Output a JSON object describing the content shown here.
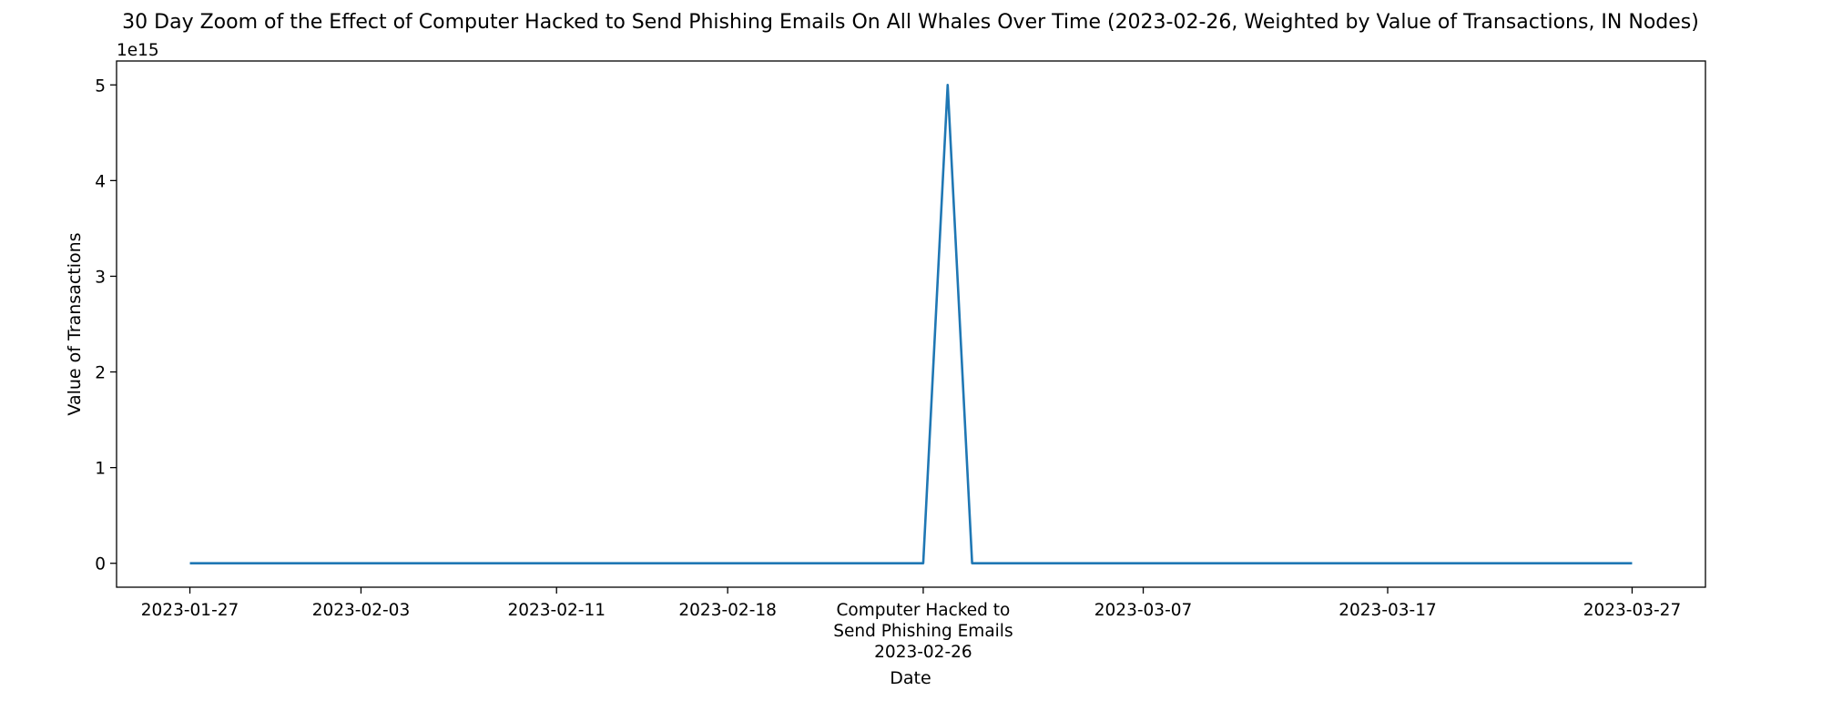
{
  "chart_data": {
    "type": "line",
    "title": "30 Day Zoom of the Effect of Computer Hacked to Send Phishing Emails On All Whales Over Time (2023-02-26, Weighted by Value of Transactions, IN Nodes)",
    "xlabel": "Date",
    "ylabel": "Value of Transactions",
    "y_offset_label": "1e15",
    "xlim": [
      "2023-01-24",
      "2023-03-30"
    ],
    "ylim": [
      -0.25,
      5.25
    ],
    "y_multiplier": 1000000000000000.0,
    "yticks": [
      0,
      1,
      2,
      3,
      4,
      5
    ],
    "xticks": [
      {
        "date": "2023-01-27",
        "label": "2023-01-27"
      },
      {
        "date": "2023-02-03",
        "label": "2023-02-03"
      },
      {
        "date": "2023-02-11",
        "label": "2023-02-11"
      },
      {
        "date": "2023-02-18",
        "label": "2023-02-18"
      },
      {
        "date": "2023-02-26",
        "label": "2023-02-26"
      },
      {
        "date": "2023-03-07",
        "label": "2023-03-07"
      },
      {
        "date": "2023-03-17",
        "label": "2023-03-17"
      },
      {
        "date": "2023-03-27",
        "label": "2023-03-27"
      }
    ],
    "event": {
      "date": "2023-02-26",
      "label_lines": [
        "Computer Hacked to",
        "Send Phishing Emails"
      ]
    },
    "grid": false,
    "series": [
      {
        "color": "#1f77b4",
        "points": [
          {
            "x": "2023-01-27",
            "y": 0
          },
          {
            "x": "2023-02-26",
            "y": 0
          },
          {
            "x": "2023-02-27",
            "y": 5.0
          },
          {
            "x": "2023-02-28",
            "y": 0
          },
          {
            "x": "2023-03-27",
            "y": 0
          }
        ]
      }
    ]
  }
}
